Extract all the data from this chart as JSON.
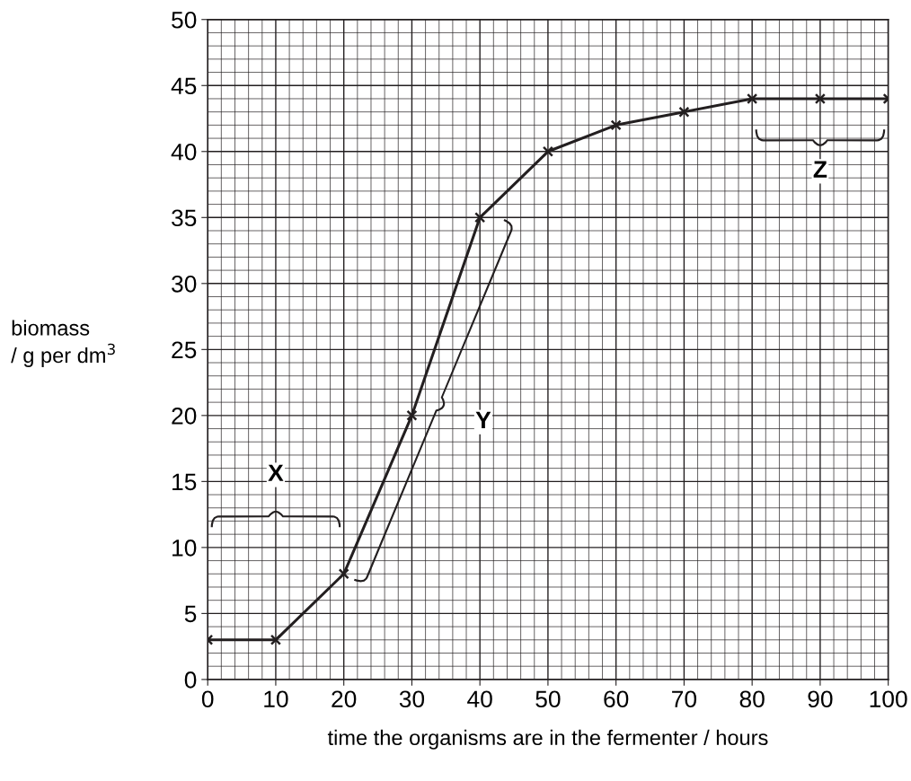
{
  "chart_data": {
    "type": "line",
    "xlabel": "time the organisms are in the fermenter / hours",
    "ylabel": "biomass\n/ g per dm$^{3}$",
    "x": [
      0,
      10,
      20,
      30,
      40,
      50,
      60,
      70,
      80,
      90,
      100
    ],
    "series": [
      {
        "color": "#231f20",
        "values": [
          3,
          3,
          8,
          20,
          35,
          40,
          42,
          43,
          44,
          44,
          44
        ]
      }
    ],
    "xlim": [
      0,
      100
    ],
    "ylim": [
      0,
      50
    ],
    "xticks": [
      0,
      10,
      20,
      30,
      40,
      50,
      60,
      70,
      80,
      90,
      100
    ],
    "yticks": [
      0,
      5,
      10,
      15,
      20,
      25,
      30,
      35,
      40,
      45,
      50
    ],
    "grid": true,
    "marker": "cross",
    "line_style": "solid",
    "annotations": [
      "X",
      "Y",
      "Z"
    ]
  }
}
